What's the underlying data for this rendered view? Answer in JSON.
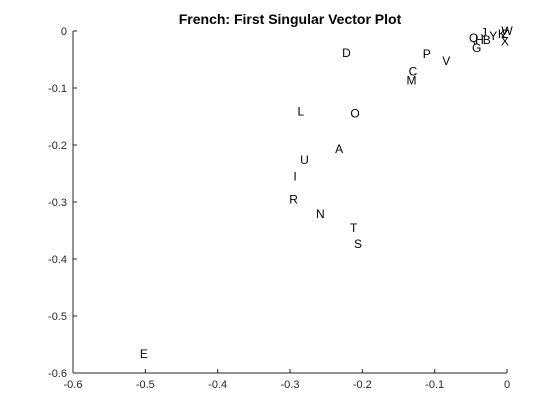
{
  "chart_data": {
    "type": "scatter",
    "title": "French: First Singular Vector Plot",
    "xlabel": "",
    "ylabel": "",
    "xlim": [
      -0.6,
      0
    ],
    "ylim": [
      -0.6,
      0
    ],
    "grid": false,
    "x_ticks": [
      -0.6,
      -0.5,
      -0.4,
      -0.3,
      -0.2,
      -0.1,
      0
    ],
    "y_ticks": [
      -0.6,
      -0.5,
      -0.4,
      -0.3,
      -0.2,
      -0.1,
      0
    ],
    "x_tick_labels": [
      "-0.6",
      "-0.5",
      "-0.4",
      "-0.3",
      "-0.2",
      "-0.1",
      "0"
    ],
    "y_tick_labels": [
      "-0.6",
      "-0.5",
      "-0.4",
      "-0.3",
      "-0.2",
      "-0.1",
      "0"
    ],
    "points": [
      {
        "label": "E",
        "x": -0.502,
        "y": -0.567
      },
      {
        "label": "S",
        "x": -0.206,
        "y": -0.374
      },
      {
        "label": "T",
        "x": -0.212,
        "y": -0.346
      },
      {
        "label": "N",
        "x": -0.258,
        "y": -0.321
      },
      {
        "label": "R",
        "x": -0.295,
        "y": -0.296
      },
      {
        "label": "I",
        "x": -0.293,
        "y": -0.255
      },
      {
        "label": "U",
        "x": -0.28,
        "y": -0.226
      },
      {
        "label": "A",
        "x": -0.232,
        "y": -0.207
      },
      {
        "label": "L",
        "x": -0.285,
        "y": -0.141
      },
      {
        "label": "O",
        "x": -0.21,
        "y": -0.145
      },
      {
        "label": "D",
        "x": -0.222,
        "y": -0.039
      },
      {
        "label": "M",
        "x": -0.132,
        "y": -0.087
      },
      {
        "label": "C",
        "x": -0.13,
        "y": -0.071
      },
      {
        "label": "V",
        "x": -0.084,
        "y": -0.053
      },
      {
        "label": "P",
        "x": -0.111,
        "y": -0.04
      },
      {
        "label": "G",
        "x": -0.042,
        "y": -0.03
      },
      {
        "label": "Q",
        "x": -0.046,
        "y": -0.012
      },
      {
        "label": "H",
        "x": -0.038,
        "y": -0.016
      },
      {
        "label": "B",
        "x": -0.028,
        "y": -0.016
      },
      {
        "label": "J",
        "x": -0.032,
        "y": -0.003
      },
      {
        "label": "Y",
        "x": -0.019,
        "y": -0.009
      },
      {
        "label": "K",
        "x": -0.007,
        "y": -0.005
      },
      {
        "label": "Z",
        "x": -0.003,
        "y": -0.005
      },
      {
        "label": "X",
        "x": -0.003,
        "y": -0.018
      },
      {
        "label": "W",
        "x": 0.0,
        "y": 0.0
      }
    ]
  }
}
